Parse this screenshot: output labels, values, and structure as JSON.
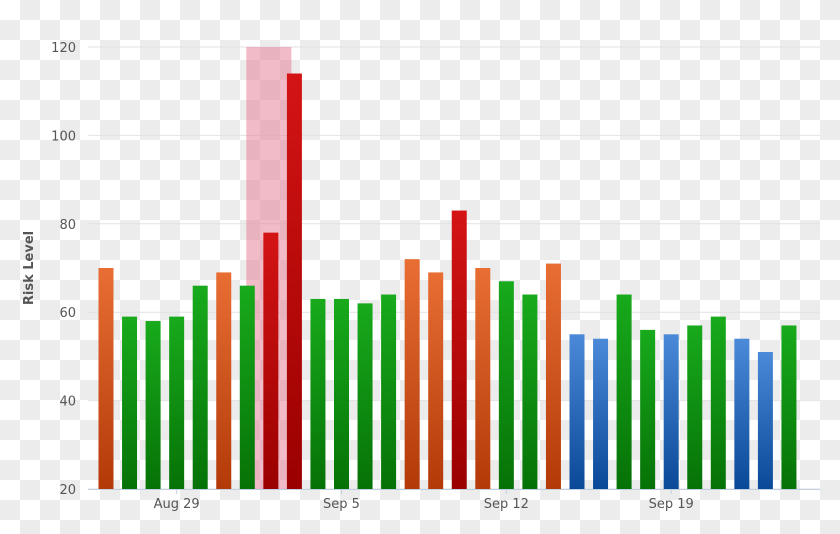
{
  "chart_data": {
    "type": "bar",
    "title": "",
    "xlabel": "",
    "ylabel": "Risk Level",
    "ylim": [
      20,
      120
    ],
    "yticks": [
      20,
      40,
      60,
      80,
      100,
      120
    ],
    "grid": true,
    "categories": [
      "Aug 26",
      "Aug 27",
      "Aug 28",
      "Aug 29",
      "Aug 30",
      "Aug 31",
      "Sep 1",
      "Sep 2",
      "Sep 3",
      "Sep 4",
      "Sep 5",
      "Sep 6",
      "Sep 7",
      "Sep 8",
      "Sep 9",
      "Sep 10",
      "Sep 11",
      "Sep 12",
      "Sep 13",
      "Sep 14",
      "Sep 15",
      "Sep 16",
      "Sep 17",
      "Sep 18",
      "Sep 19",
      "Sep 20",
      "Sep 21",
      "Sep 22",
      "Sep 23",
      "Sep 24"
    ],
    "xtick_labels": [
      {
        "index": 3,
        "label": "Aug 29"
      },
      {
        "index": 10,
        "label": "Sep 5"
      },
      {
        "index": 17,
        "label": "Sep 12"
      },
      {
        "index": 24,
        "label": "Sep 19"
      }
    ],
    "values": [
      70,
      59,
      58,
      59,
      66,
      69,
      66,
      78,
      114,
      63,
      63,
      62,
      64,
      72,
      69,
      83,
      70,
      67,
      64,
      71,
      55,
      54,
      64,
      56,
      55,
      57,
      59,
      54,
      51,
      57
    ],
    "levels": [
      "orange",
      "green",
      "green",
      "green",
      "green",
      "orange",
      "green",
      "red",
      "red",
      "green",
      "green",
      "green",
      "green",
      "orange",
      "orange",
      "red",
      "orange",
      "green",
      "green",
      "orange",
      "blue",
      "blue",
      "green",
      "green",
      "blue",
      "green",
      "green",
      "blue",
      "blue",
      "green"
    ],
    "level_colors": {
      "orange": [
        "#e86e34",
        "#b33a08"
      ],
      "green": [
        "#18aa1c",
        "#067206"
      ],
      "red": [
        "#d41414",
        "#9a0000"
      ],
      "blue": [
        "#4a8ad8",
        "#0a4898"
      ]
    },
    "highlight_band": {
      "from_index": 6,
      "to_index": 8,
      "color": "#e8849a"
    }
  }
}
